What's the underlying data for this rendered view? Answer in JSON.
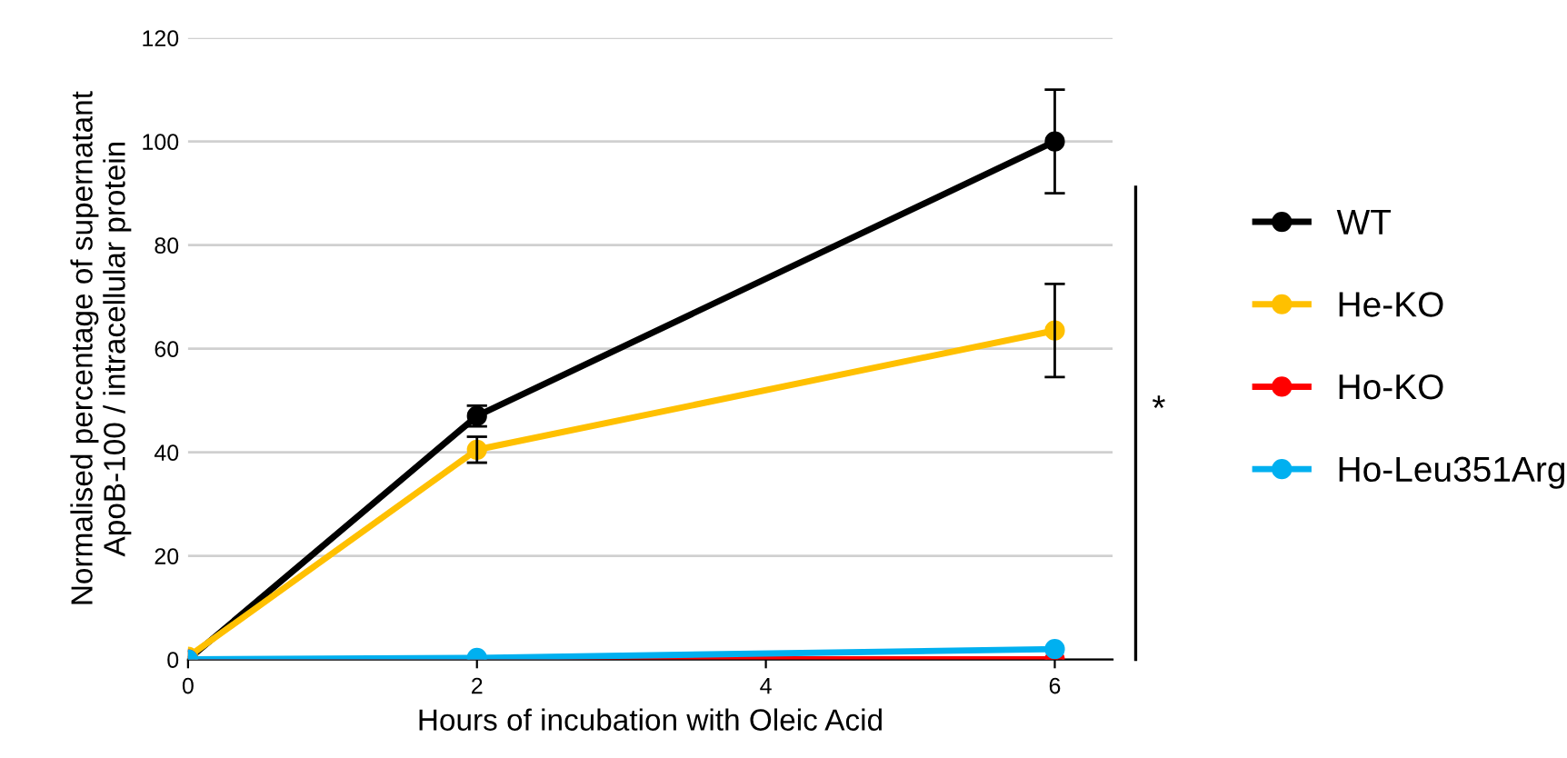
{
  "chart_data": {
    "type": "line",
    "xlabel": "Hours of incubation with Oleic Acid",
    "ylabel": "Normalised percentage of supernatant\nApoB-100 / intracellular protein",
    "x": [
      0,
      2,
      6
    ],
    "series": [
      {
        "name": "WT",
        "color": "#000000",
        "values": [
          0,
          47,
          100
        ],
        "errors": [
          null,
          2,
          10
        ]
      },
      {
        "name": "He-KO",
        "color": "#ffc000",
        "values": [
          0.5,
          40.5,
          63.5
        ],
        "errors": [
          null,
          2.5,
          9
        ]
      },
      {
        "name": "Ho-KO",
        "color": "#ff0000",
        "values": [
          0,
          0,
          0
        ]
      },
      {
        "name": "Ho-Leu351Arg",
        "color": "#00b0f0",
        "values": [
          0,
          0.3,
          2
        ]
      }
    ],
    "xlim": [
      0,
      6.4
    ],
    "xticks": [
      0,
      2,
      4,
      6
    ],
    "ylim": [
      0,
      120
    ],
    "yticks": [
      0,
      20,
      40,
      60,
      80,
      100,
      120
    ],
    "grid": "y",
    "legend": "right",
    "marker": "circle",
    "line_style": "solid",
    "annotations": [
      "*"
    ]
  }
}
